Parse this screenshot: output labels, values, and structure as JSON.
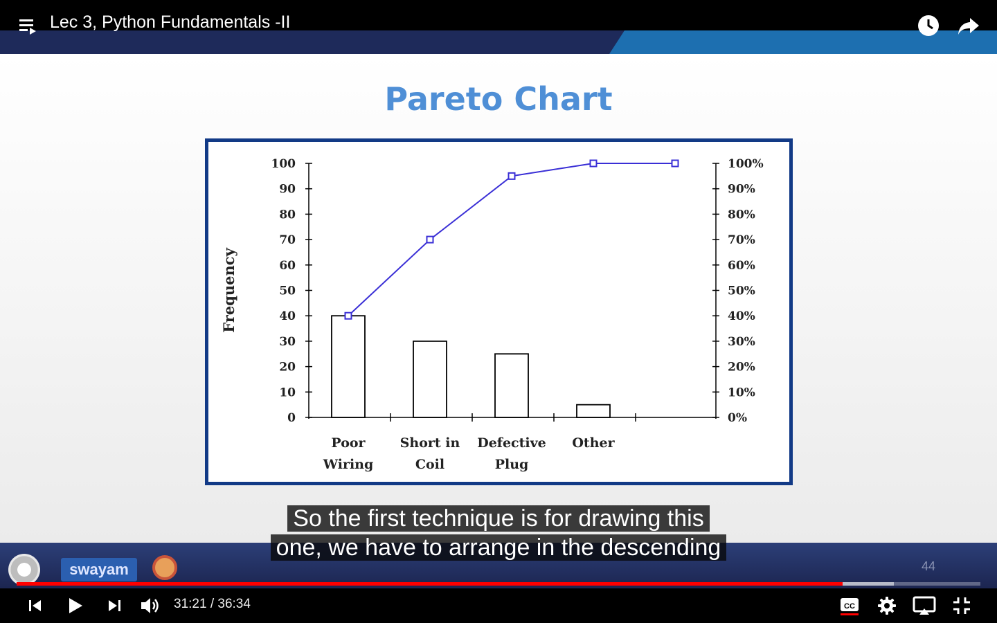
{
  "player": {
    "title": "Lec 3, Python Fundamentals -II",
    "current_time": "31:21",
    "duration": "36:34",
    "time_separator": " / ",
    "progress_fraction": 0.857,
    "buffered_fraction": 0.91,
    "accent_color": "#ff0000"
  },
  "slide": {
    "title": "Pareto Chart",
    "slide_number": "44",
    "footer_logo_text": "swayam"
  },
  "captions": {
    "line1": "So the first technique is for drawing this",
    "line2": "one, we have to arrange in the descending"
  },
  "icons": {
    "playlist": "playlist-icon",
    "watch_later": "clock-icon",
    "share": "share-icon",
    "previous": "skip-previous-icon",
    "play": "play-icon",
    "next": "skip-next-icon",
    "volume": "volume-icon",
    "captions": "cc-icon",
    "settings": "gear-icon",
    "cast": "cast-icon",
    "exit_fullscreen": "exit-fullscreen-icon"
  },
  "chart_data": {
    "type": "bar",
    "title": "",
    "ylabel": "Frequency",
    "ylim": [
      0,
      100
    ],
    "y_ticks": [
      "100",
      "90",
      "80",
      "70",
      "60",
      "50",
      "40",
      "30",
      "20",
      "10",
      "0"
    ],
    "y2_ticks": [
      "100%",
      "90%",
      "80%",
      "70%",
      "60%",
      "50%",
      "40%",
      "30%",
      "20%",
      "10%",
      "0%"
    ],
    "categories": [
      [
        "Poor",
        "Wiring"
      ],
      [
        "Short in",
        "Coil"
      ],
      [
        "Defective",
        "Plug"
      ],
      [
        "Other",
        ""
      ]
    ],
    "values": [
      40,
      30,
      25,
      5
    ],
    "cumulative_percent": [
      40,
      70,
      95,
      100,
      100
    ],
    "line_color": "#3a2fd6",
    "grid": false
  }
}
